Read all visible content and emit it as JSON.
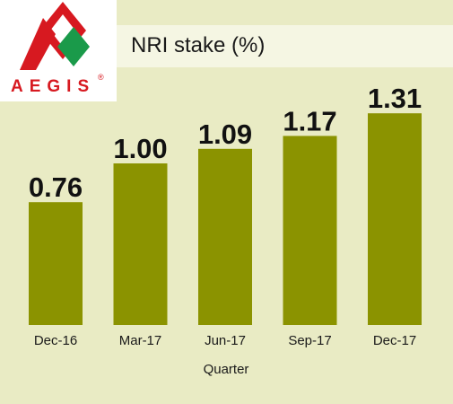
{
  "logo": {
    "text": "AEGIS",
    "registered_mark": "®",
    "colors": {
      "red": "#d71920",
      "green": "#1a9a4a"
    }
  },
  "chart_data": {
    "type": "bar",
    "title": "NRI stake (%)",
    "xlabel": "Quarter",
    "ylabel": "",
    "categories": [
      "Dec-16",
      "Mar-17",
      "Jun-17",
      "Sep-17",
      "Dec-17"
    ],
    "values": [
      0.76,
      1.0,
      1.09,
      1.17,
      1.31
    ],
    "value_labels": [
      "0.76",
      "1.00",
      "1.09",
      "1.17",
      "1.31"
    ],
    "ylim": [
      0,
      1.5
    ],
    "grid": false,
    "legend": "none",
    "colors": {
      "bar": "#8b9300",
      "background": "#e9ebc4",
      "title_panel": "#f5f6e3"
    }
  }
}
